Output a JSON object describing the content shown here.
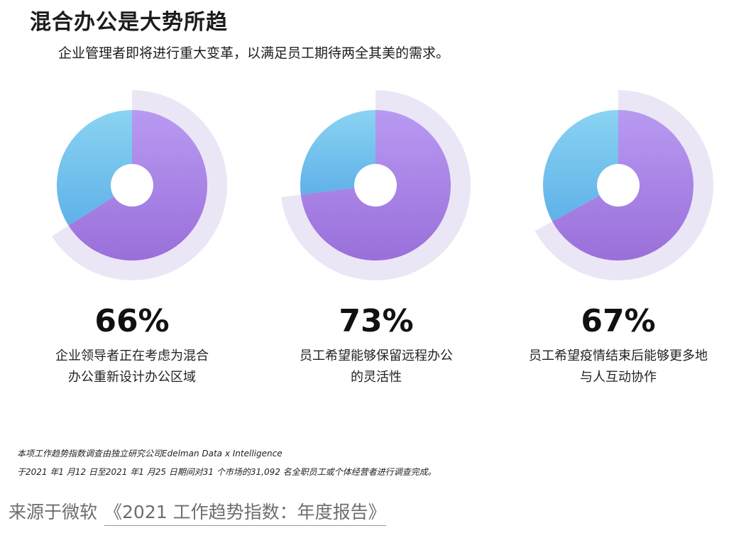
{
  "header": {
    "title": "混合办公是大势所趋",
    "subtitle": "企业管理者即将进行重大变革，以满足员工期待两全其美的需求。"
  },
  "chart_data": [
    {
      "type": "pie",
      "value_percent": 66,
      "value_label": "66%",
      "label_lines": [
        "企业领导者正在考虑为混合",
        "办公重新设计办公区域"
      ]
    },
    {
      "type": "pie",
      "value_percent": 73,
      "value_label": "73%",
      "label_lines": [
        "员工希望能够保留远程办公",
        "的灵活性"
      ]
    },
    {
      "type": "pie",
      "value_percent": 67,
      "value_label": "67%",
      "label_lines": [
        "员工希望疫情结束后能够更多地",
        "与人互动协作"
      ]
    }
  ],
  "colors": {
    "primary_segment": "#a77ee4",
    "secondary_segment": "#72c3ee",
    "outer_ring": "#ebe6f6"
  },
  "footnote": {
    "line1": "本项工作趋势指数调查由独立研究公司Edelman Data x Intelligence",
    "line2": "于2021 年1 月12 日至2021 年1 月25 日期间对31 个市场的31,092 名全职员工或个体经营者进行调查完成。"
  },
  "source": {
    "prefix": "来源于微软",
    "link_text": "《2021 工作趋势指数：年度报告》"
  }
}
